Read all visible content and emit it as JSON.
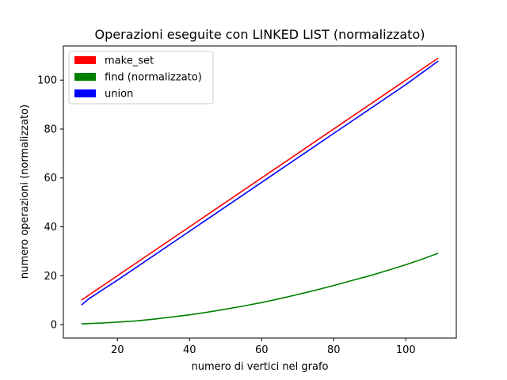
{
  "chart_data": {
    "type": "line",
    "title": "Operazioni eseguite con LINKED LIST (normalizzato)",
    "xlabel": "numero di vertici nel grafo",
    "ylabel": "numero operazioni (normalizzato)",
    "xlim": [
      5,
      114
    ],
    "ylim": [
      -5.5,
      114
    ],
    "xticks": [
      20,
      40,
      60,
      80,
      100
    ],
    "yticks": [
      0,
      20,
      40,
      60,
      80,
      100
    ],
    "legend_position": "top-left",
    "series": [
      {
        "name": "make_set",
        "color": "#ff0000",
        "x": [
          10,
          109
        ],
        "y": [
          10,
          109
        ]
      },
      {
        "name": "find (normalizzato)",
        "color": "#008000",
        "x": [
          10,
          15,
          20,
          25,
          30,
          35,
          40,
          45,
          50,
          55,
          60,
          65,
          70,
          75,
          80,
          85,
          90,
          95,
          100,
          105,
          109
        ],
        "y": [
          0.3,
          0.6,
          1.0,
          1.5,
          2.2,
          3.1,
          4.0,
          5.1,
          6.3,
          7.6,
          9.0,
          10.6,
          12.3,
          14.1,
          16.0,
          18.0,
          20.0,
          22.2,
          24.5,
          27.0,
          29.2
        ]
      },
      {
        "name": "union",
        "color": "#0000ff",
        "x": [
          10,
          12,
          20,
          40,
          60,
          80,
          100,
          109
        ],
        "y": [
          8,
          10.5,
          18.2,
          38.2,
          58.2,
          78.2,
          98.2,
          107.8
        ]
      }
    ]
  }
}
